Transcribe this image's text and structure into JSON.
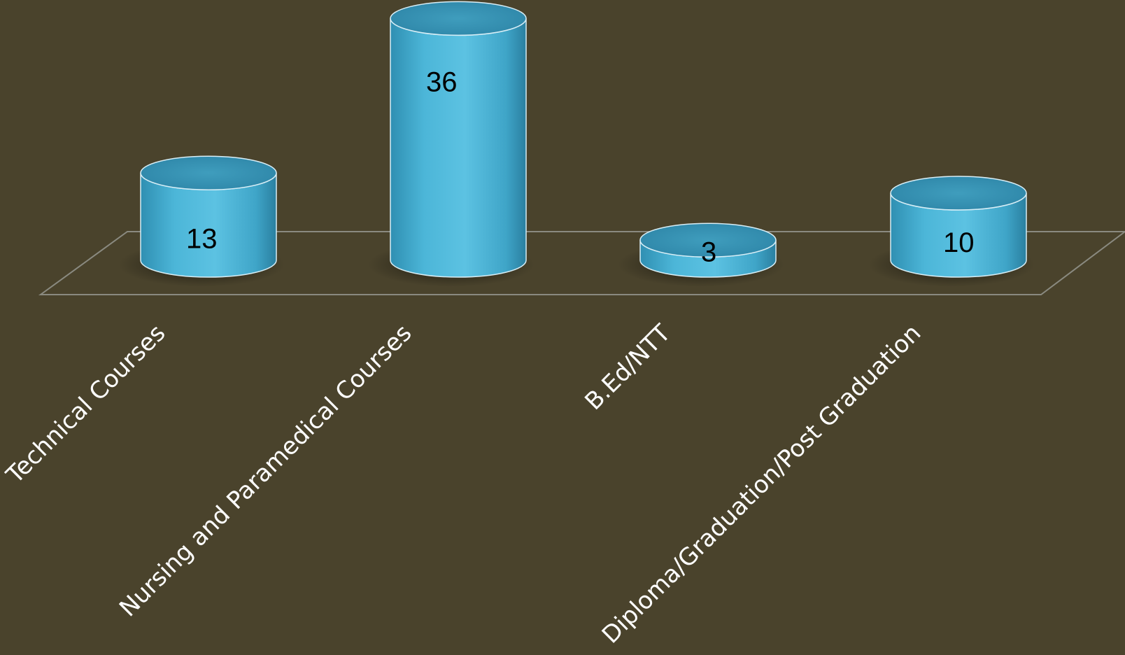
{
  "chart_data": {
    "type": "bar",
    "style": "3d-cylinder",
    "categories": [
      "Technical Courses",
      "Nursing and Paramedical Courses",
      "B.Ed/NTT",
      "Diploma/Graduation/Post Graduation"
    ],
    "values": [
      13,
      36,
      3,
      10
    ],
    "data_labels": [
      "13",
      "36",
      "3",
      "10"
    ],
    "title": "",
    "xlabel": "",
    "ylabel": "",
    "ylim": [
      0,
      40
    ],
    "grid": false,
    "legend": "none",
    "colors": {
      "background": "#4a432c",
      "bar_body": "#4cb3d4",
      "bar_top": "#3a93b3",
      "bar_dark": "#2a7fa0",
      "floor_line": "#8a8a80",
      "category_text": "#ffffff",
      "value_text": "#000000"
    }
  }
}
